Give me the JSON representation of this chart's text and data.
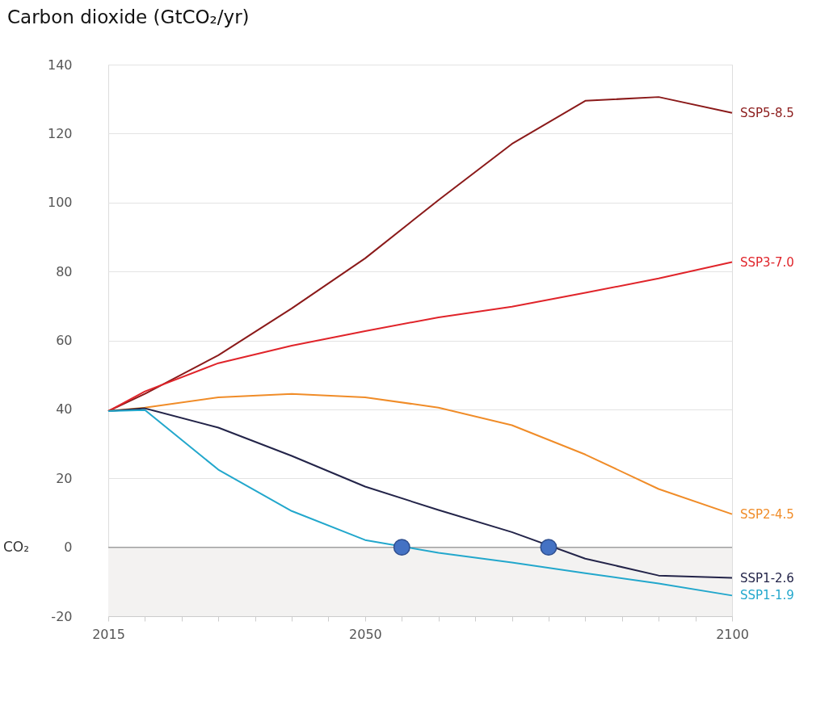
{
  "chart_data": {
    "type": "line",
    "title": "Carbon dioxide (GtCO₂/yr)",
    "x": [
      2015,
      2020,
      2030,
      2040,
      2050,
      2060,
      2070,
      2080,
      2090,
      2100
    ],
    "series": [
      {
        "name": "SSP5-8.5",
        "color": "#8b1a1a",
        "values": [
          39.5,
          44.5,
          55.7,
          69.3,
          83.8,
          100.7,
          117,
          129.5,
          130.6,
          126
        ]
      },
      {
        "name": "SSP3-7.0",
        "color": "#e0242a",
        "values": [
          39.5,
          45.2,
          53.4,
          58.5,
          62.7,
          66.7,
          69.8,
          73.8,
          78,
          82.7
        ]
      },
      {
        "name": "SSP2-4.5",
        "color": "#f08c28",
        "values": [
          39.5,
          40.5,
          43.5,
          44.5,
          43.5,
          40.5,
          35.4,
          26.9,
          16.9,
          9.6
        ]
      },
      {
        "name": "SSP1-2.6",
        "color": "#232449",
        "values": [
          39.5,
          40.3,
          34.7,
          26.5,
          17.6,
          10.8,
          4.4,
          -3.3,
          -8.2,
          -8.9
        ]
      },
      {
        "name": "SSP1-1.9",
        "color": "#22a7cc",
        "values": [
          39.5,
          39.8,
          22.5,
          10.5,
          2.1,
          -1.6,
          -4.4,
          -7.5,
          -10.5,
          -14
        ]
      },
      {
        "type": "scatter",
        "x": [
          2055,
          2075
        ],
        "values": [
          0,
          0
        ],
        "color": "#4472c4"
      }
    ],
    "xlim": [
      2015,
      2100
    ],
    "xticks": [
      2015,
      {
        "value": 2020,
        "label": null
      },
      {
        "value": 2025,
        "label": null
      },
      {
        "value": 2030,
        "label": null
      },
      {
        "value": 2035,
        "label": null
      },
      {
        "value": 2040,
        "label": null
      },
      {
        "value": 2045,
        "label": null
      },
      2050,
      {
        "value": 2055,
        "label": null
      },
      {
        "value": 2060,
        "label": null
      },
      {
        "value": 2065,
        "label": null
      },
      {
        "value": 2070,
        "label": null
      },
      {
        "value": 2075,
        "label": null
      },
      {
        "value": 2080,
        "label": null
      },
      {
        "value": 2085,
        "label": null
      },
      {
        "value": 2090,
        "label": null
      },
      {
        "value": 2095,
        "label": null
      },
      2100
    ],
    "ylim": [
      -20,
      140
    ],
    "yticks": [
      -20,
      0,
      20,
      40,
      60,
      80,
      100,
      120,
      140
    ],
    "grid": "y",
    "bands": [
      {
        "axis": "y",
        "from": -20,
        "to": 0,
        "color": "#f3f2f1"
      }
    ],
    "ref_lines": [
      {
        "axis": "y",
        "value": 0,
        "color": "#a0a0a0"
      }
    ],
    "annotations": [
      "CO₂"
    ]
  }
}
